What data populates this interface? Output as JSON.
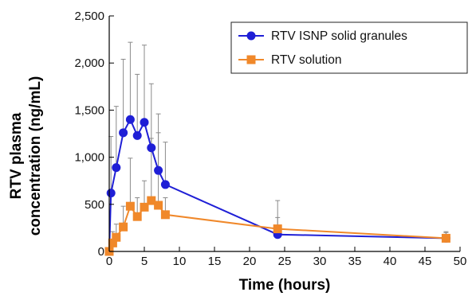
{
  "chart_data": {
    "type": "line",
    "xlabel": "Time (hours)",
    "ylabel_lines": [
      "RTV plasma",
      "concentration (ng/mL)"
    ],
    "xlim": [
      0,
      50
    ],
    "ylim": [
      0,
      2500
    ],
    "xticks": [
      0,
      5,
      10,
      15,
      20,
      25,
      30,
      35,
      40,
      45,
      50
    ],
    "yticks": [
      0,
      500,
      1000,
      1500,
      2000,
      2500
    ],
    "ytick_labels": [
      "0",
      "500",
      "1,000",
      "1,500",
      "2,000",
      "2,500"
    ],
    "grid": false,
    "legend_position": "top-right",
    "series": [
      {
        "name": "RTV ISNP solid granules",
        "color": "#1f1fd6",
        "marker": "circle",
        "x": [
          0,
          0.25,
          1,
          2,
          3,
          4,
          5,
          6,
          7,
          8,
          24,
          48
        ],
        "y": [
          0,
          620,
          890,
          1260,
          1400,
          1230,
          1370,
          1100,
          860,
          710,
          180,
          140
        ],
        "error": [
          0,
          600,
          650,
          780,
          820,
          650,
          820,
          680,
          600,
          450,
          180,
          70
        ]
      },
      {
        "name": "RTV solution",
        "color": "#f0882a",
        "marker": "square",
        "x": [
          0,
          0.5,
          1,
          2,
          3,
          4,
          5,
          6,
          7,
          8,
          24,
          48
        ],
        "y": [
          0,
          90,
          150,
          260,
          480,
          370,
          470,
          540,
          490,
          390,
          240,
          140
        ],
        "error": [
          0,
          120,
          140,
          220,
          510,
          200,
          280,
          660,
          770,
          180,
          300,
          60
        ]
      }
    ]
  }
}
